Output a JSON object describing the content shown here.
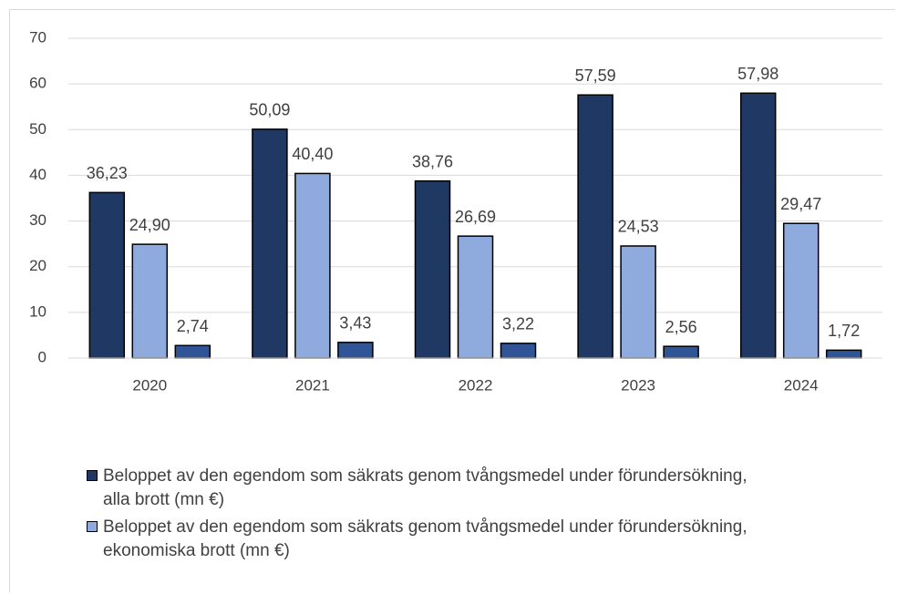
{
  "chart_data": {
    "type": "bar",
    "categories": [
      "2020",
      "2021",
      "2022",
      "2023",
      "2024"
    ],
    "series": [
      {
        "name": "Beloppet av den egendom som säkrats genom tvångsmedel under förundersökning, alla brott (mn €)",
        "color": "#203864",
        "values": [
          36.23,
          50.09,
          38.76,
          57.59,
          57.98
        ],
        "value_labels": [
          "36,23",
          "50,09",
          "38,76",
          "57,59",
          "57,98"
        ]
      },
      {
        "name": "Beloppet av den egendom som säkrats genom tvångsmedel under förundersökning, ekonomiska brott (mn €)",
        "color": "#8faadc",
        "values": [
          24.9,
          40.4,
          26.69,
          24.53,
          29.47
        ],
        "value_labels": [
          "24,90",
          "40,40",
          "26,69",
          "24,53",
          "29,47"
        ]
      },
      {
        "color": "#2f5597",
        "values": [
          2.74,
          3.43,
          3.22,
          2.56,
          1.72
        ],
        "value_labels": [
          "2,74",
          "3,43",
          "3,22",
          "2,56",
          "1,72"
        ]
      }
    ],
    "ylim": [
      0,
      70
    ],
    "yticks": [
      0,
      10,
      20,
      30,
      40,
      50,
      60,
      70
    ],
    "grid": true
  }
}
